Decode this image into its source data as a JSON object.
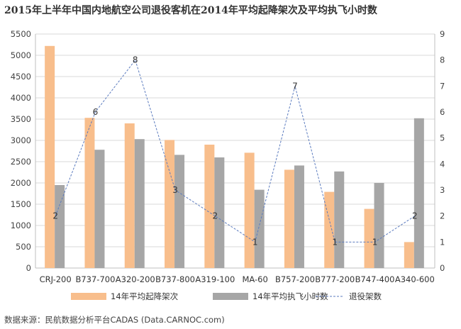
{
  "chart_data": {
    "type": "bar",
    "title": "2015年上半年中国内地航空公司退役客机在2014年平均起降架次及平均执飞小时数",
    "categories": [
      "CRJ-200",
      "B737-700",
      "A320-200",
      "B737-800",
      "A319-100",
      "MA-60",
      "B757-200",
      "B777-200",
      "B747-400",
      "A340-600"
    ],
    "series": [
      {
        "name": "14年平均起降架次",
        "axis": "left",
        "color": "#f8be8c",
        "values": [
          5220,
          3530,
          3400,
          3010,
          2900,
          2710,
          2310,
          1790,
          1390,
          610
        ]
      },
      {
        "name": "14年平均执飞小时数",
        "axis": "left",
        "color": "#a6a6a6",
        "values": [
          1950,
          2780,
          3030,
          2660,
          2600,
          1840,
          2410,
          2270,
          2000,
          3520
        ]
      },
      {
        "name": "退役架数",
        "axis": "right",
        "type": "line",
        "style": "dashed",
        "color": "#5b7bbf",
        "values": [
          2,
          6,
          8,
          3,
          2,
          1,
          7,
          1,
          1,
          2
        ],
        "labels": [
          "2",
          "6",
          "8",
          "3",
          "2",
          "1",
          "7",
          "1",
          "1",
          "2"
        ]
      }
    ],
    "ylim": [
      0,
      5500
    ],
    "yticks": [
      "0",
      "500",
      "1000",
      "1500",
      "2000",
      "2500",
      "3000",
      "3500",
      "4000",
      "4500",
      "5000",
      "5500"
    ],
    "y2lim": [
      0,
      9
    ],
    "y2ticks": [
      "0",
      "1",
      "2",
      "3",
      "4",
      "5",
      "6",
      "7",
      "8",
      "9"
    ],
    "xlabel": "",
    "ylabel": "",
    "grid": true,
    "legend": "bottom"
  },
  "source": "数据来源：民航数据分析平台CADAS (Data.CARNOC.com)"
}
